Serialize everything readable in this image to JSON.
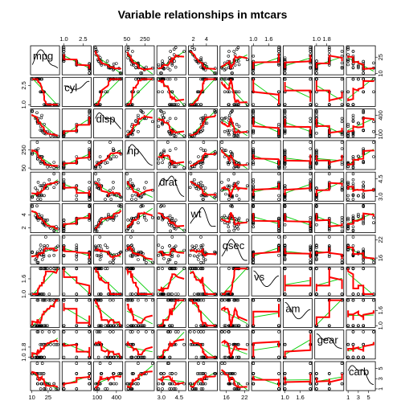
{
  "chart_data": {
    "type": "scatter",
    "title": "Variable relationships in mtcars",
    "variables": [
      "mpg",
      "cyl",
      "disp",
      "hp",
      "drat",
      "wt",
      "qsec",
      "vs",
      "am",
      "gear",
      "carb"
    ],
    "plot_kind": "scatterplot-matrix",
    "diagonal": "kernel-density",
    "fits": [
      "linear (green)",
      "smoother (red)"
    ],
    "point_style": "open-circle",
    "grid": false,
    "tick_labels": {
      "mpg": [
        "10",
        "25"
      ],
      "cyl": [
        "1.0",
        "2.5"
      ],
      "disp": [
        "100",
        "400"
      ],
      "hp": [
        "50",
        "250"
      ],
      "drat": [
        "3.0",
        "4.5"
      ],
      "wt": [
        "2",
        "4"
      ],
      "qsec": [
        "16",
        "22"
      ],
      "vs": [
        "1.0",
        "1.6"
      ],
      "am": [
        "1.0",
        "1.6"
      ],
      "gear": [
        "1.0",
        "1.8"
      ],
      "carb": [
        "1",
        "3",
        "5"
      ]
    },
    "ranges": {
      "mpg": [
        10.4,
        33.9
      ],
      "cyl": [
        1,
        3
      ],
      "disp": [
        71.1,
        472
      ],
      "hp": [
        52,
        335
      ],
      "drat": [
        2.76,
        4.93
      ],
      "wt": [
        1.513,
        5.424
      ],
      "qsec": [
        14.5,
        22.9
      ],
      "vs": [
        1,
        2
      ],
      "am": [
        1,
        2
      ],
      "gear": [
        1,
        3
      ],
      "carb": [
        1,
        6
      ]
    },
    "observations": [
      {
        "mpg": 21.0,
        "cyl": 2,
        "disp": 160,
        "hp": 110,
        "drat": 3.9,
        "wt": 2.62,
        "qsec": 16.46,
        "vs": 1,
        "am": 2,
        "gear": 2,
        "carb": 4
      },
      {
        "mpg": 21.0,
        "cyl": 2,
        "disp": 160,
        "hp": 110,
        "drat": 3.9,
        "wt": 2.875,
        "qsec": 17.02,
        "vs": 1,
        "am": 2,
        "gear": 2,
        "carb": 4
      },
      {
        "mpg": 22.8,
        "cyl": 1,
        "disp": 108,
        "hp": 93,
        "drat": 3.85,
        "wt": 2.32,
        "qsec": 18.61,
        "vs": 2,
        "am": 2,
        "gear": 2,
        "carb": 1
      },
      {
        "mpg": 21.4,
        "cyl": 2,
        "disp": 258,
        "hp": 110,
        "drat": 3.08,
        "wt": 3.215,
        "qsec": 19.44,
        "vs": 2,
        "am": 1,
        "gear": 1,
        "carb": 1
      },
      {
        "mpg": 18.7,
        "cyl": 3,
        "disp": 360,
        "hp": 175,
        "drat": 3.15,
        "wt": 3.44,
        "qsec": 17.02,
        "vs": 1,
        "am": 1,
        "gear": 1,
        "carb": 2
      },
      {
        "mpg": 18.1,
        "cyl": 2,
        "disp": 225,
        "hp": 105,
        "drat": 2.76,
        "wt": 3.46,
        "qsec": 20.22,
        "vs": 2,
        "am": 1,
        "gear": 1,
        "carb": 1
      },
      {
        "mpg": 14.3,
        "cyl": 3,
        "disp": 360,
        "hp": 245,
        "drat": 3.21,
        "wt": 3.57,
        "qsec": 15.84,
        "vs": 1,
        "am": 1,
        "gear": 1,
        "carb": 4
      },
      {
        "mpg": 24.4,
        "cyl": 1,
        "disp": 146.7,
        "hp": 62,
        "drat": 3.69,
        "wt": 3.19,
        "qsec": 20.0,
        "vs": 2,
        "am": 1,
        "gear": 2,
        "carb": 2
      },
      {
        "mpg": 22.8,
        "cyl": 1,
        "disp": 140.8,
        "hp": 95,
        "drat": 3.92,
        "wt": 3.15,
        "qsec": 22.9,
        "vs": 2,
        "am": 1,
        "gear": 2,
        "carb": 2
      },
      {
        "mpg": 19.2,
        "cyl": 2,
        "disp": 167.6,
        "hp": 123,
        "drat": 3.92,
        "wt": 3.44,
        "qsec": 18.3,
        "vs": 2,
        "am": 1,
        "gear": 2,
        "carb": 4
      },
      {
        "mpg": 17.8,
        "cyl": 2,
        "disp": 167.6,
        "hp": 123,
        "drat": 3.92,
        "wt": 3.44,
        "qsec": 18.9,
        "vs": 2,
        "am": 1,
        "gear": 2,
        "carb": 4
      },
      {
        "mpg": 16.4,
        "cyl": 3,
        "disp": 275.8,
        "hp": 180,
        "drat": 3.07,
        "wt": 4.07,
        "qsec": 17.4,
        "vs": 1,
        "am": 1,
        "gear": 1,
        "carb": 3
      },
      {
        "mpg": 17.3,
        "cyl": 3,
        "disp": 275.8,
        "hp": 180,
        "drat": 3.07,
        "wt": 3.73,
        "qsec": 17.6,
        "vs": 1,
        "am": 1,
        "gear": 1,
        "carb": 3
      },
      {
        "mpg": 15.2,
        "cyl": 3,
        "disp": 275.8,
        "hp": 180,
        "drat": 3.07,
        "wt": 3.78,
        "qsec": 18.0,
        "vs": 1,
        "am": 1,
        "gear": 1,
        "carb": 3
      },
      {
        "mpg": 10.4,
        "cyl": 3,
        "disp": 472,
        "hp": 205,
        "drat": 2.93,
        "wt": 5.25,
        "qsec": 17.98,
        "vs": 1,
        "am": 1,
        "gear": 1,
        "carb": 4
      },
      {
        "mpg": 10.4,
        "cyl": 3,
        "disp": 460,
        "hp": 215,
        "drat": 3.0,
        "wt": 5.424,
        "qsec": 17.82,
        "vs": 1,
        "am": 1,
        "gear": 1,
        "carb": 4
      },
      {
        "mpg": 14.7,
        "cyl": 3,
        "disp": 440,
        "hp": 230,
        "drat": 3.23,
        "wt": 5.345,
        "qsec": 17.42,
        "vs": 1,
        "am": 1,
        "gear": 1,
        "carb": 4
      },
      {
        "mpg": 32.4,
        "cyl": 1,
        "disp": 78.7,
        "hp": 66,
        "drat": 4.08,
        "wt": 2.2,
        "qsec": 19.47,
        "vs": 2,
        "am": 2,
        "gear": 2,
        "carb": 1
      },
      {
        "mpg": 30.4,
        "cyl": 1,
        "disp": 75.7,
        "hp": 52,
        "drat": 4.93,
        "wt": 1.615,
        "qsec": 18.52,
        "vs": 2,
        "am": 2,
        "gear": 2,
        "carb": 2
      },
      {
        "mpg": 33.9,
        "cyl": 1,
        "disp": 71.1,
        "hp": 65,
        "drat": 4.22,
        "wt": 1.835,
        "qsec": 19.9,
        "vs": 2,
        "am": 2,
        "gear": 2,
        "carb": 1
      },
      {
        "mpg": 21.5,
        "cyl": 1,
        "disp": 120.1,
        "hp": 97,
        "drat": 3.7,
        "wt": 2.465,
        "qsec": 20.01,
        "vs": 2,
        "am": 1,
        "gear": 1,
        "carb": 1
      },
      {
        "mpg": 15.5,
        "cyl": 3,
        "disp": 318,
        "hp": 150,
        "drat": 2.76,
        "wt": 3.52,
        "qsec": 16.87,
        "vs": 1,
        "am": 1,
        "gear": 1,
        "carb": 2
      },
      {
        "mpg": 15.2,
        "cyl": 3,
        "disp": 304,
        "hp": 150,
        "drat": 3.15,
        "wt": 3.435,
        "qsec": 17.3,
        "vs": 1,
        "am": 1,
        "gear": 1,
        "carb": 2
      },
      {
        "mpg": 13.3,
        "cyl": 3,
        "disp": 350,
        "hp": 245,
        "drat": 3.73,
        "wt": 3.84,
        "qsec": 15.41,
        "vs": 1,
        "am": 1,
        "gear": 1,
        "carb": 4
      },
      {
        "mpg": 19.2,
        "cyl": 3,
        "disp": 400,
        "hp": 175,
        "drat": 3.08,
        "wt": 3.845,
        "qsec": 17.05,
        "vs": 1,
        "am": 1,
        "gear": 1,
        "carb": 2
      },
      {
        "mpg": 27.3,
        "cyl": 1,
        "disp": 79,
        "hp": 66,
        "drat": 4.08,
        "wt": 1.935,
        "qsec": 18.9,
        "vs": 2,
        "am": 2,
        "gear": 2,
        "carb": 1
      },
      {
        "mpg": 26.0,
        "cyl": 1,
        "disp": 120.3,
        "hp": 91,
        "drat": 4.43,
        "wt": 2.14,
        "qsec": 16.7,
        "vs": 1,
        "am": 2,
        "gear": 3,
        "carb": 2
      },
      {
        "mpg": 30.4,
        "cyl": 1,
        "disp": 95.1,
        "hp": 113,
        "drat": 3.77,
        "wt": 1.513,
        "qsec": 16.9,
        "vs": 2,
        "am": 2,
        "gear": 3,
        "carb": 2
      },
      {
        "mpg": 15.8,
        "cyl": 3,
        "disp": 351,
        "hp": 264,
        "drat": 4.22,
        "wt": 3.17,
        "qsec": 14.5,
        "vs": 1,
        "am": 2,
        "gear": 3,
        "carb": 4
      },
      {
        "mpg": 19.7,
        "cyl": 2,
        "disp": 145,
        "hp": 175,
        "drat": 3.62,
        "wt": 2.77,
        "qsec": 15.5,
        "vs": 1,
        "am": 2,
        "gear": 3,
        "carb": 6
      },
      {
        "mpg": 15.0,
        "cyl": 3,
        "disp": 301,
        "hp": 335,
        "drat": 3.54,
        "wt": 3.57,
        "qsec": 14.6,
        "vs": 1,
        "am": 2,
        "gear": 3,
        "carb": 6
      },
      {
        "mpg": 21.4,
        "cyl": 1,
        "disp": 121,
        "hp": 109,
        "drat": 4.11,
        "wt": 2.78,
        "qsec": 18.6,
        "vs": 2,
        "am": 2,
        "gear": 2,
        "carb": 2
      }
    ],
    "colors": {
      "points": "#000000",
      "linear_fit": "#00cc00",
      "smoother": "#ff0000",
      "panel_border": "#000000"
    }
  }
}
